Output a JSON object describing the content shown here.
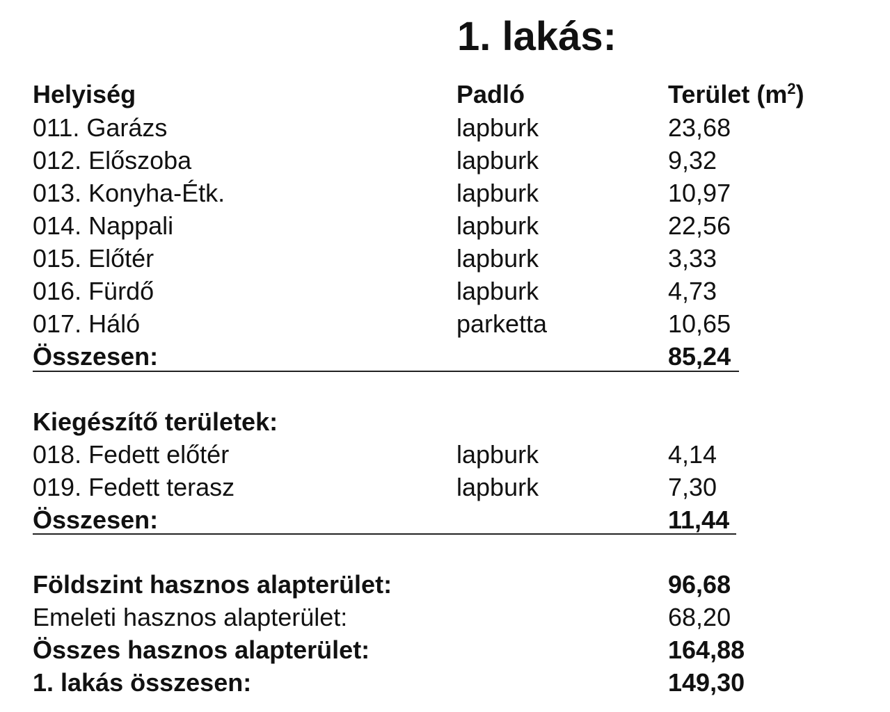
{
  "title": "1. lakás:",
  "headers": {
    "room": "Helyiség",
    "floor": "Padló",
    "area": "Terület (m",
    "area_sup": "2",
    "area_close": ")"
  },
  "rooms": [
    {
      "name": "011. Garázs",
      "floor": "lapburk",
      "area": "23,68"
    },
    {
      "name": "012. Előszoba",
      "floor": "lapburk",
      "area": "9,32"
    },
    {
      "name": "013. Konyha-Étk.",
      "floor": "lapburk",
      "area": "10,97"
    },
    {
      "name": "014. Nappali",
      "floor": "lapburk",
      "area": "22,56"
    },
    {
      "name": "015. Előtér",
      "floor": "lapburk",
      "area": "3,33"
    },
    {
      "name": "016. Fürdő",
      "floor": "lapburk",
      "area": "4,73"
    },
    {
      "name": "017. Háló",
      "floor": "parketta",
      "area": "10,65"
    }
  ],
  "rooms_total": {
    "label": "Összesen:",
    "value": "85,24"
  },
  "supplementary": {
    "heading": "Kiegészítő területek:",
    "rooms": [
      {
        "name": "018. Fedett előtér",
        "floor": "lapburk",
        "area": "4,14"
      },
      {
        "name": "019. Fedett terasz",
        "floor": "lapburk",
        "area": "7,30"
      }
    ],
    "total": {
      "label": "Összesen:",
      "value": "11,44"
    }
  },
  "summary": [
    {
      "label": "Földszint hasznos alapterület:",
      "value": "96,68",
      "bold": true
    },
    {
      "label": "Emeleti hasznos alapterület:",
      "value": "68,20",
      "bold": false
    },
    {
      "label": "Összes hasznos alapterület:",
      "value": "164,88",
      "bold": true
    },
    {
      "label": "1. lakás összesen:",
      "value": "149,30",
      "bold": true
    }
  ]
}
